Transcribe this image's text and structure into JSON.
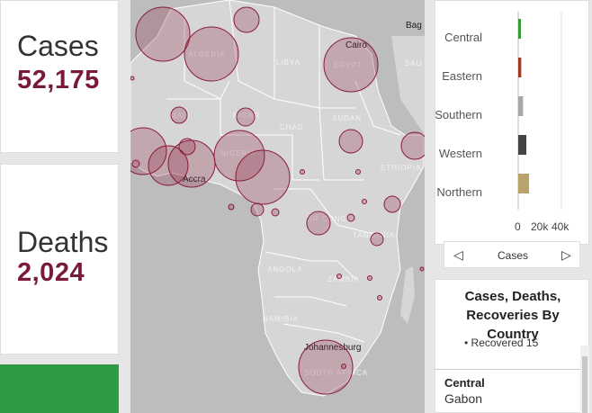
{
  "stats": {
    "cases_label": "Cases",
    "cases_value": "52,175",
    "deaths_label": "Deaths",
    "deaths_value": "2,024"
  },
  "map": {
    "country_labels": [
      "ALGERIA",
      "LIBYA",
      "EGYPT",
      "MALI",
      "NIGER",
      "CHAD",
      "SUDAN",
      "NIGERIA",
      "ETHIOPIA",
      "DR CONGO",
      "TANZANIA",
      "ANGOLA",
      "ZAMBIA",
      "NAMIBIA",
      "SOUTH AFRICA",
      "SAU"
    ],
    "city_labels": [
      "Cairo",
      "Accra",
      "Johannesburg",
      "Bag"
    ],
    "bubble_color": "#8b1a3c",
    "land_color": "#d6d6d6"
  },
  "chart_data": {
    "type": "bar",
    "orientation": "horizontal",
    "categories": [
      "Central",
      "Eastern",
      "Southern",
      "Western",
      "Northern"
    ],
    "values": [
      2500,
      2800,
      4500,
      7500,
      10000
    ],
    "colors": [
      "#3a9a3a",
      "#9e3c25",
      "#a8a8a8",
      "#444444",
      "#b8a36c"
    ],
    "tick_labels": [
      "0",
      "20k",
      "40k"
    ],
    "xlim": [
      0,
      40000
    ],
    "xlabel": "Cases"
  },
  "nav": {
    "label": "Cases"
  },
  "list": {
    "title": "Cases, Deaths, Recoveries By Country",
    "stub": "Recovered  15",
    "region": "Central",
    "country": "Gabon"
  }
}
